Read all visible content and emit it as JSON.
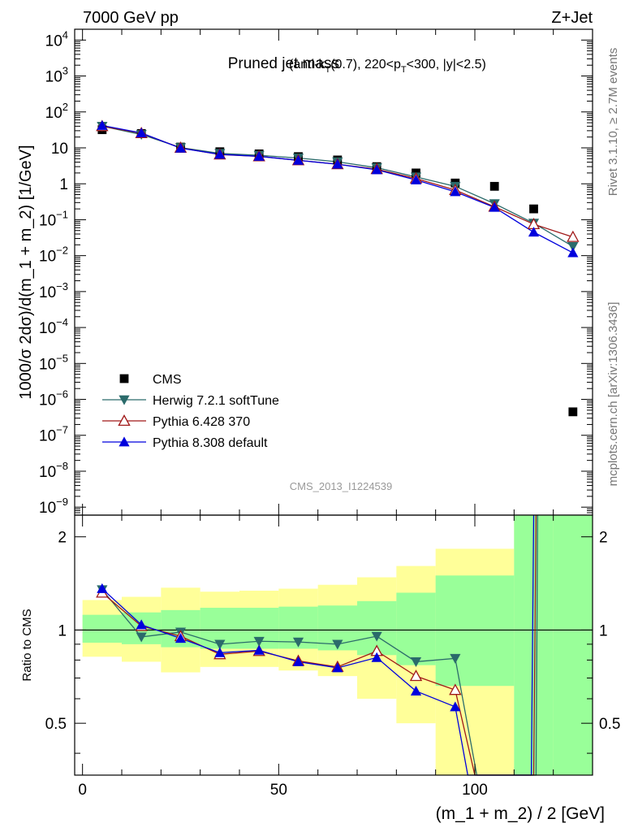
{
  "header": {
    "left": "7000 GeV pp",
    "right": "Z+Jet"
  },
  "side_labels": {
    "rivet": "Rivet 3.1.10, ≥ 2.7M events",
    "mcplots": "mcplots.cern.ch [arXiv:1306.3436]"
  },
  "chart_data": [
    {
      "type": "scatter",
      "panel": "main",
      "title": "Pruned jet mass",
      "title_cut": {
        "p1": "(anti-k",
        "sub1": "T",
        "p2": "(0.7), 220<p",
        "sub2": "T",
        "p3": "<300, |y|<2.5)"
      },
      "ylabel": "1000/σ 2dσ)/d(m_1 + m_2) [1/GeV]",
      "analysis_label": "CMS_2013_I1224539",
      "yscale": "log",
      "xlim": [
        -2,
        130
      ],
      "ylim": [
        6e-10,
        20000.0
      ],
      "x_ticks": [
        0,
        50,
        100
      ],
      "y_ticks": [
        {
          "value": 1e-09,
          "base": "10",
          "exp": "−9"
        },
        {
          "value": 1e-08,
          "base": "10",
          "exp": "−8"
        },
        {
          "value": 1e-07,
          "base": "10",
          "exp": "−7"
        },
        {
          "value": 1e-06,
          "base": "10",
          "exp": "−6"
        },
        {
          "value": 1e-05,
          "base": "10",
          "exp": "−5"
        },
        {
          "value": 0.0001,
          "base": "10",
          "exp": "−4"
        },
        {
          "value": 0.001,
          "base": "10",
          "exp": "−3"
        },
        {
          "value": 0.01,
          "base": "10",
          "exp": "−2"
        },
        {
          "value": 0.1,
          "base": "10",
          "exp": "−1"
        },
        {
          "value": 1,
          "base": "1",
          "exp": ""
        },
        {
          "value": 10,
          "base": "10",
          "exp": ""
        },
        {
          "value": 100,
          "base": "10",
          "exp": "2"
        },
        {
          "value": 1000,
          "base": "10",
          "exp": "3"
        },
        {
          "value": 10000,
          "base": "10",
          "exp": "4"
        }
      ],
      "legend_position": "lower-left",
      "series": [
        {
          "name": "CMS",
          "marker": "square",
          "color": "#000000",
          "x": [
            5,
            15,
            25,
            35,
            45,
            55,
            65,
            75,
            85,
            95,
            105,
            115,
            125
          ],
          "y": [
            32,
            25,
            10.5,
            7.8,
            6.8,
            5.7,
            4.6,
            3.0,
            2.0,
            1.05,
            0.85,
            0.2,
            4.5e-07
          ]
        },
        {
          "name": "Herwig 7.2.1 softTune",
          "marker": "triangle-down",
          "color": "#2b6b6b",
          "x": [
            5,
            15,
            25,
            35,
            45,
            55,
            65,
            75,
            85,
            95,
            105,
            115,
            125
          ],
          "y": [
            40,
            23.5,
            10.2,
            7.0,
            6.2,
            5.2,
            4.1,
            2.8,
            1.55,
            0.85,
            0.28,
            0.08,
            0.018
          ]
        },
        {
          "name": "Pythia 6.428 370",
          "marker": "triangle-up-open",
          "color": "#a01818",
          "x": [
            5,
            15,
            25,
            35,
            45,
            55,
            65,
            75,
            85,
            95,
            105,
            115,
            125
          ],
          "y": [
            40,
            25.5,
            10.0,
            6.5,
            5.8,
            4.5,
            3.5,
            2.55,
            1.4,
            0.67,
            0.23,
            0.075,
            0.033
          ]
        },
        {
          "name": "Pythia 8.308 default",
          "marker": "triangle-up",
          "color": "#0000dd",
          "x": [
            5,
            15,
            25,
            35,
            45,
            55,
            65,
            75,
            85,
            95,
            105,
            115,
            125
          ],
          "y": [
            42,
            26,
            9.8,
            6.6,
            5.8,
            4.5,
            3.5,
            2.45,
            1.28,
            0.6,
            0.22,
            0.045,
            0.012
          ]
        }
      ]
    },
    {
      "type": "line",
      "panel": "ratio",
      "ylabel": "Ratio to CMS",
      "xlabel": "(m_1 + m_2) / 2 [GeV]",
      "xlim": [
        -2,
        130
      ],
      "ylim": [
        0.34,
        2.35
      ],
      "y_ticks": [
        "0.5",
        "1",
        "2"
      ],
      "x_ticks": [
        "0",
        "50",
        "100"
      ],
      "bands": {
        "x_edges": [
          0,
          10,
          20,
          30,
          40,
          50,
          60,
          70,
          80,
          90,
          100,
          110,
          120,
          130
        ],
        "inner_low": [
          0.91,
          0.9,
          0.88,
          0.87,
          0.87,
          0.87,
          0.86,
          0.83,
          0.77,
          0.66,
          0.66,
          0.34,
          0.34
        ],
        "inner_high": [
          1.12,
          1.14,
          1.16,
          1.18,
          1.18,
          1.19,
          1.2,
          1.24,
          1.32,
          1.5,
          1.5,
          2.35,
          2.35
        ],
        "outer_low": [
          0.82,
          0.79,
          0.73,
          0.76,
          0.76,
          0.74,
          0.71,
          0.6,
          0.5,
          0.34,
          0.34,
          0.34,
          0.34
        ],
        "outer_high": [
          1.25,
          1.28,
          1.37,
          1.33,
          1.34,
          1.36,
          1.4,
          1.48,
          1.61,
          1.83,
          1.83,
          2.35,
          2.35
        ],
        "inner_color": "#99ff99",
        "outer_color": "#ffff99"
      },
      "series": [
        {
          "name": "Herwig 7.2.1 softTune",
          "color": "#2b6b6b",
          "marker": "triangle-down",
          "x": [
            5,
            15,
            25,
            35,
            45,
            55,
            65,
            75,
            85,
            95,
            100.5,
            115.6,
            116
          ],
          "y": [
            1.35,
            0.95,
            0.985,
            0.9,
            0.92,
            0.915,
            0.9,
            0.955,
            0.79,
            0.81,
            0.34,
            0.34,
            2.35
          ]
        },
        {
          "name": "Pythia 6.428 370",
          "color": "#a01818",
          "marker": "triangle-up-open",
          "x": [
            5,
            15,
            25,
            35,
            45,
            55,
            65,
            75,
            85,
            95,
            100,
            115.0,
            115.6
          ],
          "y": [
            1.32,
            1.03,
            0.955,
            0.835,
            0.855,
            0.795,
            0.76,
            0.855,
            0.71,
            0.64,
            0.34,
            0.34,
            2.35
          ]
        },
        {
          "name": "Pythia 8.308 default",
          "color": "#0000dd",
          "marker": "triangle-up",
          "x": [
            5,
            15,
            25,
            35,
            45,
            55,
            65,
            75,
            85,
            95,
            98.2,
            114.4,
            115.0
          ],
          "y": [
            1.36,
            1.04,
            0.94,
            0.845,
            0.86,
            0.79,
            0.755,
            0.815,
            0.635,
            0.565,
            0.34,
            0.34,
            2.35
          ]
        }
      ]
    }
  ]
}
